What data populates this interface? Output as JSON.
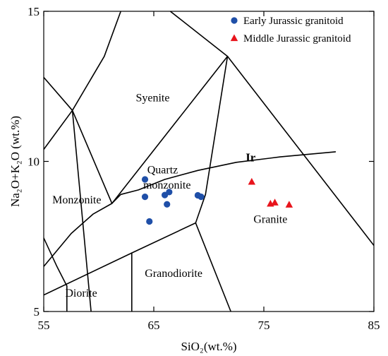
{
  "chart_data": {
    "type": "scatter",
    "xlabel": "SiO₂(wt.%)",
    "ylabel": "Na₂O+K₂O (wt.%)",
    "xlim": [
      55,
      85
    ],
    "ylim": [
      5,
      15
    ],
    "x_ticks": [
      "55",
      "65",
      "75",
      "85"
    ],
    "y_ticks": [
      "5",
      "10",
      "15"
    ],
    "grid": false,
    "legend_position": "top-right",
    "series": [
      {
        "name": "Early Jurassic granitoid",
        "marker": "circle",
        "color": "#1f4fa8",
        "points": [
          [
            64.2,
            9.4
          ],
          [
            64.2,
            8.82
          ],
          [
            66.0,
            8.88
          ],
          [
            66.4,
            8.98
          ],
          [
            66.2,
            8.57
          ],
          [
            69.0,
            8.87
          ],
          [
            69.3,
            8.82
          ],
          [
            64.6,
            8.0
          ]
        ]
      },
      {
        "name": "Middle Jurassic granitoid",
        "marker": "triangle",
        "color": "#e8141c",
        "points": [
          [
            73.9,
            9.32
          ],
          [
            75.6,
            8.59
          ],
          [
            76.0,
            8.63
          ],
          [
            77.3,
            8.56
          ]
        ]
      }
    ],
    "boundaries": [
      [
        [
          55,
          12.8
        ],
        [
          57.6,
          11.7
        ],
        [
          61.2,
          8.6
        ]
      ],
      [
        [
          55,
          10.4
        ],
        [
          57.6,
          11.7
        ],
        [
          60.5,
          13.5
        ],
        [
          62.0,
          15.0
        ]
      ],
      [
        [
          57.6,
          11.7
        ],
        [
          59.3,
          5.0
        ]
      ],
      [
        [
          61.2,
          8.6
        ],
        [
          62.0,
          8.9
        ],
        [
          63.6,
          9.05
        ],
        [
          66.0,
          9.4
        ],
        [
          69.0,
          9.7
        ],
        [
          72.5,
          9.97
        ],
        [
          76.5,
          10.15
        ],
        [
          81.5,
          10.32
        ]
      ],
      [
        [
          61.2,
          8.6
        ],
        [
          71.7,
          13.5
        ]
      ],
      [
        [
          71.7,
          13.5
        ],
        [
          69.7,
          8.9
        ]
      ],
      [
        [
          71.7,
          13.5
        ],
        [
          85.0,
          7.2
        ]
      ],
      [
        [
          66.5,
          15.0
        ],
        [
          71.7,
          13.5
        ]
      ],
      [
        [
          61.2,
          8.6
        ],
        [
          59.5,
          8.25
        ],
        [
          57.5,
          7.6
        ],
        [
          55.0,
          6.5
        ]
      ],
      [
        [
          55,
          5.55
        ],
        [
          63.0,
          6.95
        ],
        [
          68.8,
          7.95
        ]
      ],
      [
        [
          68.8,
          7.95
        ],
        [
          69.7,
          8.9
        ]
      ],
      [
        [
          68.8,
          7.95
        ],
        [
          72.0,
          5.0
        ]
      ],
      [
        [
          55,
          7.45
        ],
        [
          56.2,
          6.5
        ],
        [
          57.1,
          5.85
        ]
      ],
      [
        [
          57.1,
          5.85
        ],
        [
          57.1,
          5.0
        ]
      ],
      [
        [
          63.0,
          6.95
        ],
        [
          63.0,
          5.0
        ]
      ]
    ],
    "field_labels": [
      {
        "text": "Syenite",
        "x": 64.9,
        "y": 12.0
      },
      {
        "text": "Quartz",
        "x": 65.8,
        "y": 9.6
      },
      {
        "text": "monzonite",
        "x": 66.2,
        "y": 9.1
      },
      {
        "text": "Monzonite",
        "x": 58.0,
        "y": 8.6
      },
      {
        "text": "Granite",
        "x": 75.6,
        "y": 7.95
      },
      {
        "text": "Granodiorite",
        "x": 66.8,
        "y": 6.15
      },
      {
        "text": "Diorite",
        "x": 58.4,
        "y": 5.5
      }
    ],
    "annotations": [
      {
        "text": "Ir",
        "x": 73.8,
        "y": 10.0
      }
    ]
  }
}
